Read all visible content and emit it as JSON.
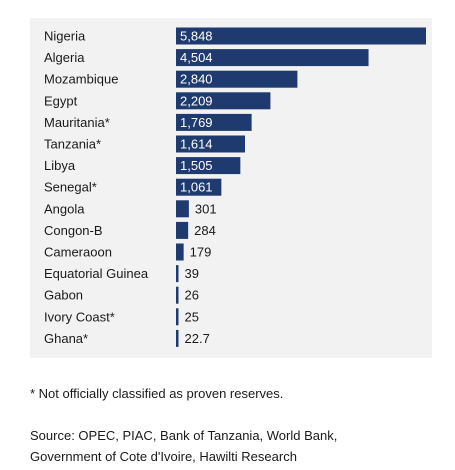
{
  "chart_data": {
    "type": "bar",
    "orientation": "horizontal",
    "categories": [
      "Nigeria",
      "Algeria",
      "Mozambique",
      "Egypt",
      "Mauritania*",
      "Tanzania*",
      "Libya",
      "Senegal*",
      "Angola",
      "Congon-B",
      "Cameraoon",
      "Equatorial Guinea",
      "Gabon",
      "Ivory Coast*",
      "Ghana*"
    ],
    "values": [
      5848,
      4504,
      2840,
      2209,
      1769,
      1614,
      1505,
      1061,
      301,
      284,
      179,
      39,
      26,
      25,
      22.7
    ],
    "value_labels": [
      "5,848",
      "4,504",
      "2,840",
      "2,209",
      "1,769",
      "1,614",
      "1,505",
      "1,061",
      "301",
      "284",
      "179",
      "39",
      "26",
      "25",
      "22.7"
    ],
    "bar_color": "#1f3a6e",
    "panel_color": "#f2f2f2",
    "grid": false
  },
  "notes": {
    "footnote": "* Not officially classified as proven reserves.",
    "source_line1": "Source: OPEC, PIAC, Bank of Tanzania, World Bank,",
    "source_line2": "Government of Cote d'Ivoire, Hawilti Research"
  }
}
